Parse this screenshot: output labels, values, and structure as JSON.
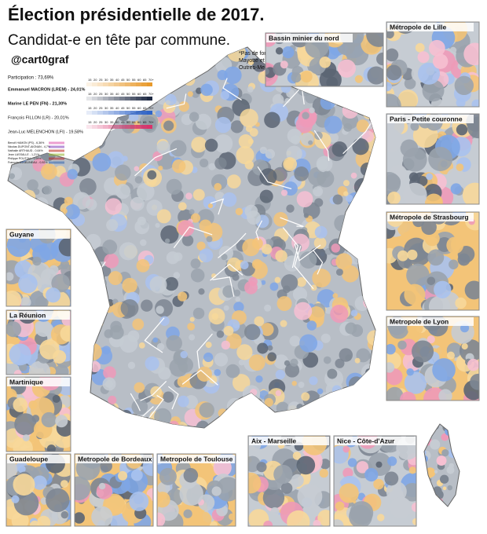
{
  "header": {
    "title": "Élection présidentielle de 2017.",
    "subtitle": "Candidat-e en tête par commune.",
    "handle": "@cart0graf",
    "note": [
      "*Pas de fond de carte pour",
      "Mayotte  et les autres",
      "Outres-Mers"
    ]
  },
  "legend": {
    "participation": "Participation : 73,69%",
    "scale": [
      "15",
      "20",
      "25",
      "30",
      "35",
      "40",
      "45",
      "50",
      "55",
      "60",
      "65",
      "70+"
    ],
    "candidates": [
      {
        "name": "Emmanuel MACRON (LREM) - 24,01%",
        "color": "#e89a2c"
      },
      {
        "name": "Marine LE PEN (FN) - 21,30%",
        "color": "#1f2a44"
      },
      {
        "name": "François FILLON (LR) - 20,01%",
        "color": "#2f64c8"
      },
      {
        "name": "Jean-Luc MÉLENCHON (LFI) - 19,58%",
        "color": "#d8336b"
      }
    ],
    "minor": [
      "Benoît HAMON (PS) - 6,36%",
      "Nicolas DUPONT-AIGNAN - 4,7%",
      "Nathalie ARTHAUD - 0,64%",
      "Jean LASSALLE - 1,21%",
      "Philippe POUTOU - 1,09%",
      "François ASSELINEAU - 0,92%"
    ]
  },
  "insets": [
    "Bassin minier du nord",
    "Métropole de Lille",
    "Paris - Petite couronne",
    "Métropole de Strasbourg",
    "Metropole de Lyon",
    "Guyane",
    "La Réunion",
    "Martinique",
    "Guadeloupe",
    "Metropole de Bordeaux",
    "Metropole de Toulouse",
    "Aix - Marseille",
    "Nice - Côte-d'Azur"
  ]
}
